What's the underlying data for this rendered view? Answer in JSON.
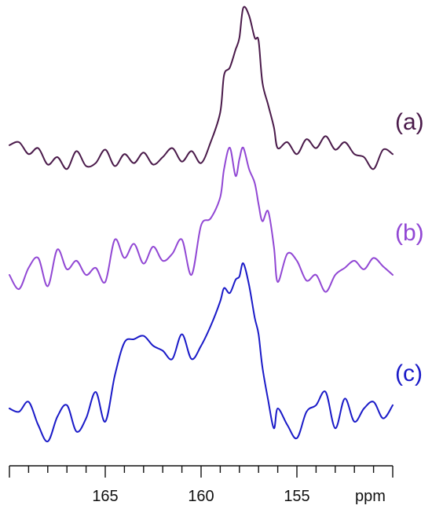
{
  "chart_data": {
    "type": "line",
    "xlabel": "ppm",
    "xlim": [
      170,
      150
    ],
    "x_reversed": true,
    "grid": false,
    "x_ticks": [
      {
        "value": 165,
        "label": "165"
      },
      {
        "value": 160,
        "label": "160"
      },
      {
        "value": 155,
        "label": "155"
      }
    ],
    "y_axis_shown": false,
    "series": [
      {
        "name": "(a)",
        "color": "#4a1a4a",
        "x": [
          170.0,
          169.5,
          169.0,
          168.5,
          168.0,
          167.5,
          167.0,
          166.5,
          166.0,
          165.5,
          165.0,
          164.5,
          164.0,
          163.5,
          163.0,
          162.5,
          162.0,
          161.5,
          161.0,
          160.5,
          160.0,
          159.5,
          159.0,
          158.8,
          158.5,
          158.2,
          158.0,
          157.8,
          157.5,
          157.2,
          157.0,
          156.8,
          156.5,
          156.2,
          156.0,
          155.5,
          155.0,
          154.5,
          154.0,
          153.5,
          153.0,
          152.5,
          152.0,
          151.5,
          151.0,
          150.5,
          150.0
        ],
        "y": [
          0.08,
          0.1,
          0.02,
          0.06,
          -0.05,
          0.0,
          -0.08,
          0.04,
          -0.06,
          -0.04,
          0.05,
          -0.06,
          0.02,
          -0.04,
          0.03,
          -0.05,
          0.0,
          0.06,
          -0.03,
          0.04,
          -0.04,
          0.1,
          0.3,
          0.55,
          0.6,
          0.72,
          0.8,
          1.0,
          0.95,
          0.8,
          0.78,
          0.5,
          0.35,
          0.2,
          0.06,
          0.1,
          0.02,
          0.12,
          0.06,
          0.14,
          0.05,
          0.1,
          0.02,
          0.0,
          -0.08,
          0.05,
          0.02
        ]
      },
      {
        "name": "(b)",
        "color": "#9147d4",
        "x": [
          170.0,
          169.5,
          169.0,
          168.5,
          168.0,
          167.5,
          167.0,
          166.5,
          166.0,
          165.5,
          165.0,
          164.5,
          164.0,
          163.5,
          163.0,
          162.5,
          162.0,
          161.5,
          161.0,
          160.5,
          160.0,
          159.5,
          159.0,
          158.8,
          158.5,
          158.2,
          158.0,
          157.8,
          157.5,
          157.2,
          157.0,
          156.8,
          156.5,
          156.2,
          156.0,
          155.5,
          155.0,
          154.5,
          154.0,
          153.5,
          153.0,
          152.5,
          152.0,
          151.5,
          151.0,
          150.5,
          150.0
        ],
        "y": [
          0.0,
          -0.1,
          0.05,
          0.12,
          -0.08,
          0.18,
          0.04,
          0.1,
          0.0,
          0.05,
          -0.05,
          0.25,
          0.12,
          0.22,
          0.08,
          0.2,
          0.1,
          0.15,
          0.25,
          0.0,
          0.35,
          0.4,
          0.55,
          0.75,
          0.9,
          0.7,
          0.82,
          0.9,
          0.75,
          0.65,
          0.5,
          0.38,
          0.45,
          0.2,
          -0.05,
          0.15,
          0.1,
          -0.04,
          0.0,
          -0.12,
          0.0,
          0.05,
          0.1,
          0.04,
          0.12,
          0.06,
          0.0
        ]
      },
      {
        "name": "(c)",
        "color": "#1a1ac8",
        "x": [
          170.0,
          169.5,
          169.0,
          168.5,
          168.0,
          167.5,
          167.0,
          166.5,
          166.0,
          165.5,
          165.0,
          164.5,
          164.0,
          163.5,
          163.0,
          162.5,
          162.0,
          161.5,
          161.0,
          160.5,
          160.0,
          159.5,
          159.0,
          158.8,
          158.5,
          158.2,
          158.0,
          157.8,
          157.5,
          157.2,
          157.0,
          156.8,
          156.5,
          156.2,
          156.0,
          155.5,
          155.0,
          154.5,
          154.0,
          153.5,
          153.0,
          152.5,
          152.0,
          151.5,
          151.0,
          150.5,
          150.0
        ],
        "y": [
          0.0,
          -0.02,
          0.04,
          -0.1,
          -0.2,
          -0.05,
          0.02,
          -0.14,
          -0.06,
          0.1,
          -0.08,
          0.2,
          0.4,
          0.42,
          0.44,
          0.38,
          0.35,
          0.3,
          0.45,
          0.3,
          0.38,
          0.5,
          0.65,
          0.73,
          0.7,
          0.78,
          0.8,
          0.88,
          0.75,
          0.55,
          0.45,
          0.25,
          0.05,
          -0.12,
          0.0,
          -0.1,
          -0.18,
          -0.02,
          0.02,
          0.1,
          -0.12,
          0.06,
          -0.08,
          0.0,
          0.04,
          -0.06,
          0.02
        ]
      }
    ]
  }
}
